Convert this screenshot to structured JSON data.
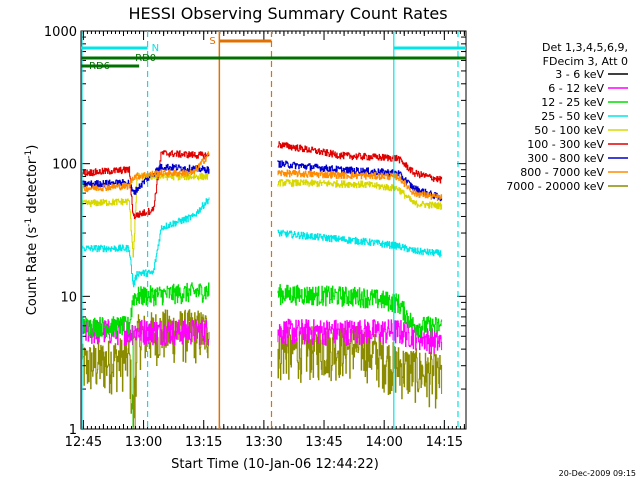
{
  "chart_data": {
    "type": "line",
    "title": "HESSI Observing Summary Count Rates",
    "xlabel": "Start Time (10-Jan-06 12:44:22)",
    "ylabel_main": "Count Rate (s",
    "ylabel_sup1": "-1",
    "ylabel_mid": " detector",
    "ylabel_sup2": "-1",
    "ylabel_end": ")",
    "y_scale": "log",
    "ylim": [
      1,
      1000
    ],
    "xlim_minutes": [
      0,
      96
    ],
    "x_ticks": [
      {
        "label": "12:45",
        "t": 0.6
      },
      {
        "label": "13:00",
        "t": 15.6
      },
      {
        "label": "13:15",
        "t": 30.6
      },
      {
        "label": "13:30",
        "t": 45.6
      },
      {
        "label": "13:45",
        "t": 60.6
      },
      {
        "label": "14:00",
        "t": 75.6
      },
      {
        "label": "14:15",
        "t": 90.6
      }
    ],
    "y_ticks": [
      {
        "label": "1",
        "v": 1
      },
      {
        "label": "10",
        "v": 10
      },
      {
        "label": "100",
        "v": 100
      },
      {
        "label": "1000",
        "v": 1000
      }
    ],
    "legend_header": [
      "Det 1,3,4,5,6,9,",
      "FDecim 3, Att 0"
    ],
    "series": [
      {
        "name": "3 - 6 keV",
        "color": "#000000"
      },
      {
        "name": "6 - 12 keV",
        "color": "#ff00ff"
      },
      {
        "name": "12 - 25 keV",
        "color": "#00dd00"
      },
      {
        "name": "25 - 50 keV",
        "color": "#00e5e5"
      },
      {
        "name": "50 - 100 keV",
        "color": "#d8d800"
      },
      {
        "name": "100 - 300 keV",
        "color": "#e00000"
      },
      {
        "name": "300 - 800 keV",
        "color": "#0000cc"
      },
      {
        "name": "800 - 7000 keV",
        "color": "#ff8c00"
      },
      {
        "name": "7000 - 20000 keV",
        "color": "#8b8b00"
      }
    ],
    "series_levels": [
      {
        "color": "#8b8b00",
        "before_seg": [
          [
            0,
            3
          ],
          [
            12,
            3.5
          ],
          [
            13,
            1.2
          ],
          [
            14,
            5
          ],
          [
            20,
            5.5
          ],
          [
            32,
            5.5
          ]
        ],
        "after_seg": [
          [
            49,
            4
          ],
          [
            70,
            4.2
          ],
          [
            79,
            3
          ],
          [
            90,
            2.5
          ]
        ]
      },
      {
        "color": "#ff00ff",
        "before_seg": [
          [
            0,
            5.5
          ],
          [
            32,
            5.5
          ]
        ],
        "after_seg": [
          [
            49,
            5.5
          ],
          [
            79,
            5.5
          ],
          [
            90,
            4.5
          ]
        ]
      },
      {
        "color": "#00dd00",
        "before_seg": [
          [
            0,
            6
          ],
          [
            12,
            6
          ],
          [
            13,
            10
          ],
          [
            32,
            11
          ]
        ],
        "after_seg": [
          [
            49,
            10.5
          ],
          [
            70,
            10
          ],
          [
            79,
            9
          ],
          [
            83,
            6
          ],
          [
            90,
            6
          ]
        ]
      },
      {
        "color": "#00e5e5",
        "before_seg": [
          [
            0,
            23
          ],
          [
            12,
            23
          ],
          [
            13,
            12
          ],
          [
            14,
            15
          ],
          [
            18,
            15
          ],
          [
            20,
            33
          ],
          [
            28,
            40
          ],
          [
            32,
            55
          ]
        ],
        "after_seg": [
          [
            49,
            30
          ],
          [
            70,
            26
          ],
          [
            79,
            24
          ],
          [
            83,
            22
          ],
          [
            90,
            21
          ]
        ]
      },
      {
        "color": "#d8d800",
        "before_seg": [
          [
            0,
            50
          ],
          [
            12,
            52
          ],
          [
            13,
            20
          ],
          [
            14,
            80
          ],
          [
            32,
            80
          ]
        ],
        "after_seg": [
          [
            49,
            72
          ],
          [
            70,
            70
          ],
          [
            79,
            65
          ],
          [
            83,
            50
          ],
          [
            90,
            48
          ]
        ]
      },
      {
        "color": "#e00000",
        "before_seg": [
          [
            0,
            85
          ],
          [
            12,
            90
          ],
          [
            13,
            40
          ],
          [
            18,
            45
          ],
          [
            20,
            120
          ],
          [
            32,
            115
          ]
        ],
        "after_seg": [
          [
            49,
            140
          ],
          [
            65,
            115
          ],
          [
            79,
            110
          ],
          [
            83,
            85
          ],
          [
            90,
            75
          ]
        ]
      },
      {
        "color": "#0000cc",
        "before_seg": [
          [
            0,
            70
          ],
          [
            12,
            72
          ],
          [
            13,
            60
          ],
          [
            16,
            75
          ],
          [
            20,
            95
          ],
          [
            32,
            90
          ]
        ],
        "after_seg": [
          [
            49,
            100
          ],
          [
            65,
            90
          ],
          [
            79,
            85
          ],
          [
            83,
            65
          ],
          [
            90,
            55
          ]
        ]
      },
      {
        "color": "#ff8c00",
        "before_seg": [
          [
            0,
            65
          ],
          [
            12,
            68
          ],
          [
            13,
            80
          ],
          [
            20,
            85
          ],
          [
            28,
            85
          ],
          [
            32,
            120
          ]
        ],
        "after_seg": [
          [
            49,
            85
          ],
          [
            65,
            82
          ],
          [
            79,
            80
          ],
          [
            83,
            60
          ],
          [
            90,
            55
          ]
        ]
      }
    ],
    "annotations": {
      "saa_label": "S",
      "rd0_label": "RD0",
      "rd6_label": "RD6",
      "cyan_bars": [
        [
          0,
          16.6
        ],
        [
          78,
          96
        ]
      ],
      "cyan_vlines_solid": [
        0,
        78
      ],
      "cyan_vlines_dashed": [
        16.6,
        94
      ],
      "orange_solid": 34.5,
      "orange_dashed": 47.5,
      "orange_bar": [
        34.5,
        47.5
      ],
      "green_line": [
        0,
        96
      ],
      "rd6_bar": [
        0,
        14.5
      ]
    },
    "footer_date": "20-Dec-2009 09:15"
  }
}
